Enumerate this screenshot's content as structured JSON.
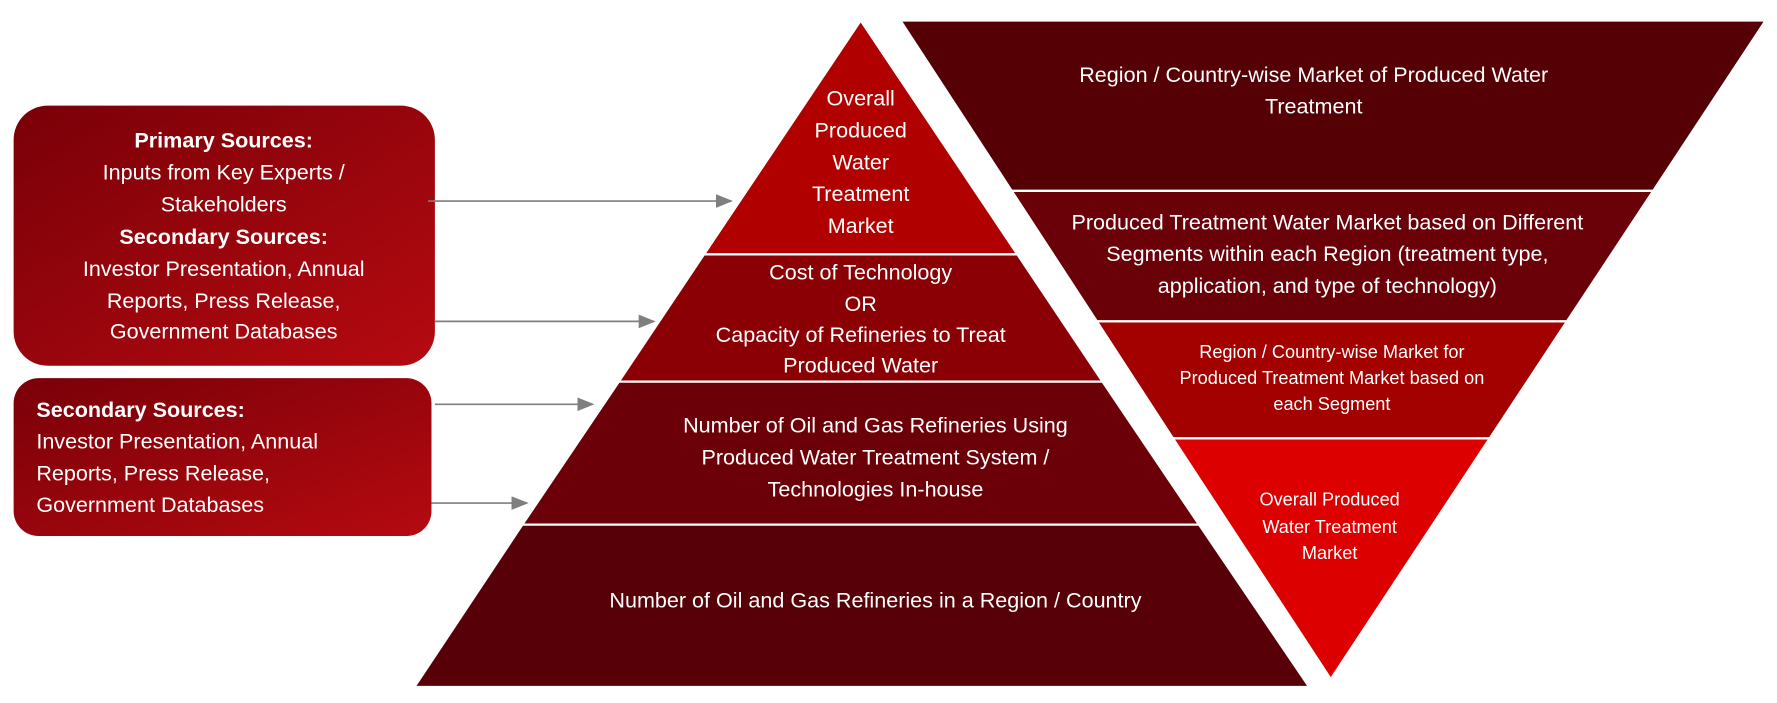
{
  "sources": [
    {
      "lines": [
        "Primary Sources:",
        "Inputs from Key Experts /",
        "Stakeholders",
        "Secondary Sources:",
        "Investor Presentation, Annual",
        "Reports, Press Release,",
        "Government Databases"
      ]
    },
    {
      "lines": [
        "Secondary Sources:",
        "Investor Presentation, Annual",
        "Reports, Press Release,",
        "Government Databases"
      ]
    }
  ],
  "pyramid": {
    "levels": [
      {
        "lines": [
          "Overall",
          "Produced",
          "Water",
          "Treatment",
          "Market"
        ]
      },
      {
        "lines": [
          "Cost of Technology",
          "OR",
          "Capacity of Refineries to Treat",
          "Produced Water"
        ]
      },
      {
        "lines": [
          "Number of Oil and Gas Refineries Using",
          "Produced Water Treatment System /",
          "Technologies In-house"
        ]
      },
      {
        "lines": [
          "Number of Oil and Gas Refineries in a Region / Country"
        ]
      }
    ]
  },
  "inverted_pyramid": {
    "levels": [
      {
        "lines": [
          "Region / Country-wise Market of Produced Water",
          "Treatment"
        ]
      },
      {
        "lines": [
          "Produced Treatment Water Market based on Different",
          "Segments within each Region (treatment type,",
          "application, and type of technology)"
        ]
      },
      {
        "lines": [
          "Region / Country-wise Market for",
          "Produced Treatment  Market based on",
          "each Segment"
        ]
      },
      {
        "lines": [
          "Overall  Produced",
          "Water Treatment",
          "Market"
        ]
      }
    ]
  }
}
